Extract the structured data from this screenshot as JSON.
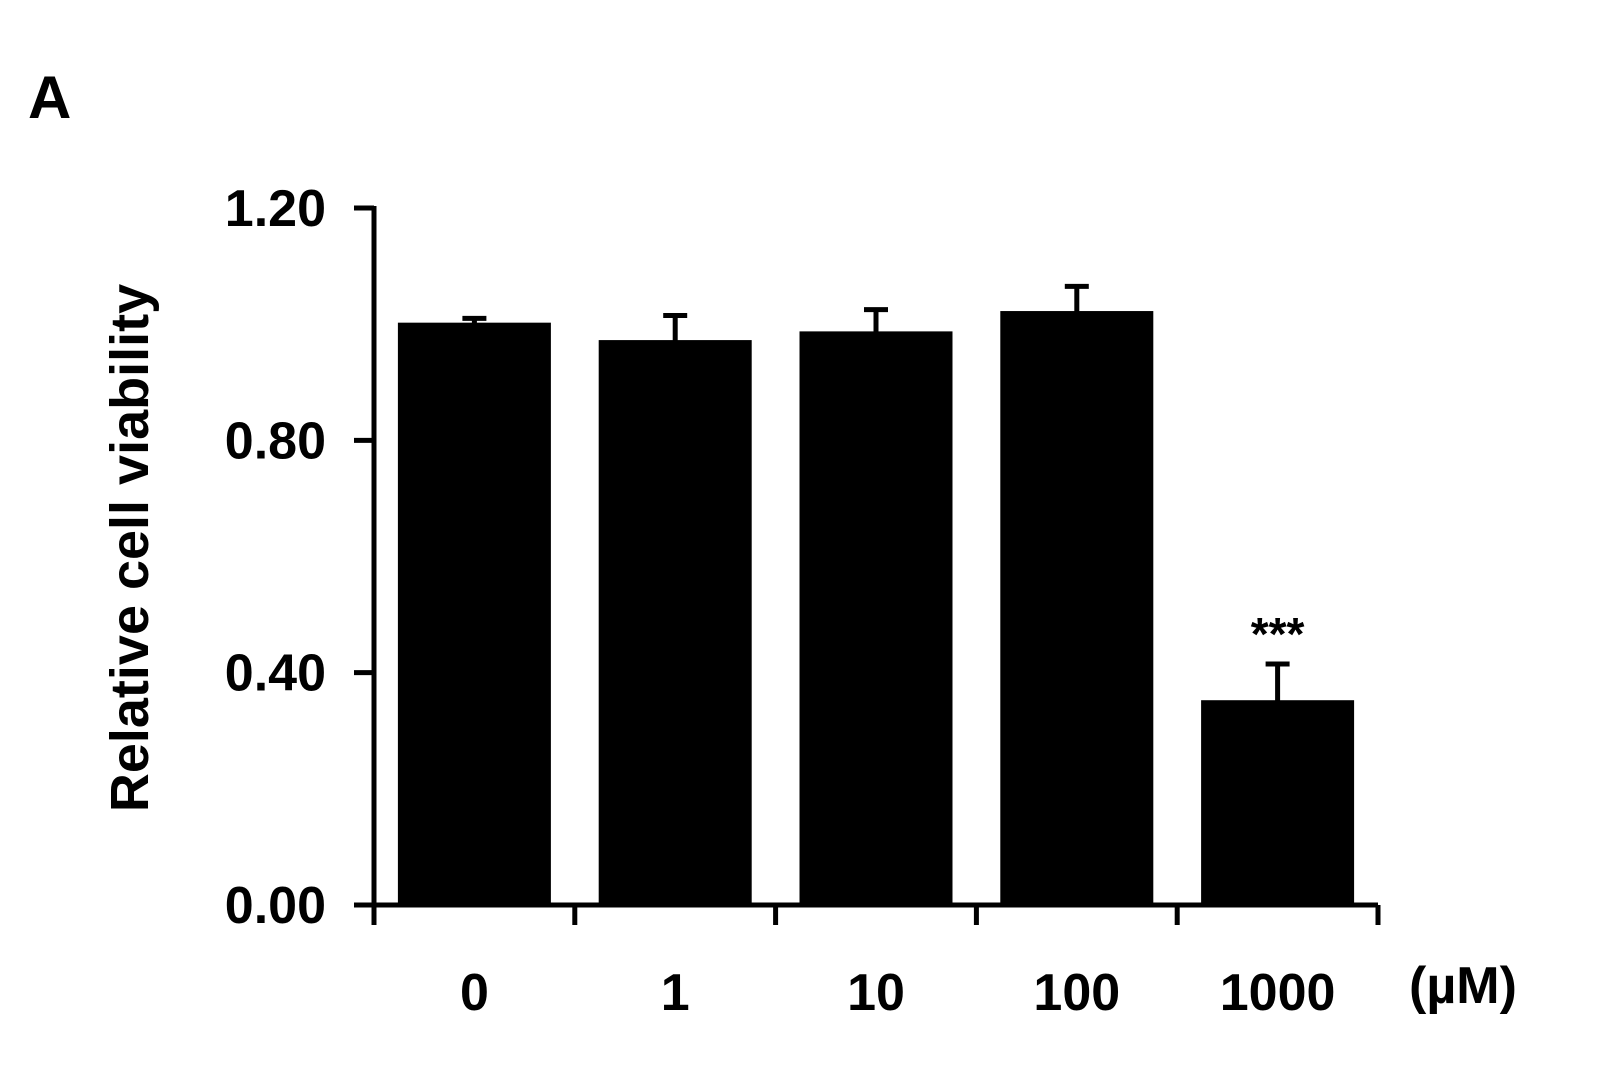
{
  "panel_label": "A",
  "chart_data": {
    "type": "bar",
    "categories": [
      "0",
      "1",
      "10",
      "100",
      "1000"
    ],
    "values": [
      1.0,
      0.97,
      0.985,
      1.02,
      0.35
    ],
    "errors": [
      0.01,
      0.045,
      0.04,
      0.045,
      0.065
    ],
    "annotations": [
      "",
      "",
      "",
      "",
      "***"
    ],
    "xlabel": "",
    "x_unit_label": "(µM)",
    "ylabel": "Relative cell viability",
    "ylim": [
      0,
      1.2
    ],
    "yticks": [
      0.0,
      0.4,
      0.8,
      1.2
    ],
    "ytick_labels": [
      "0.00",
      "0.40",
      "0.80",
      "1.20"
    ],
    "bar_color": "#000000",
    "grid": false,
    "legend": "none"
  }
}
